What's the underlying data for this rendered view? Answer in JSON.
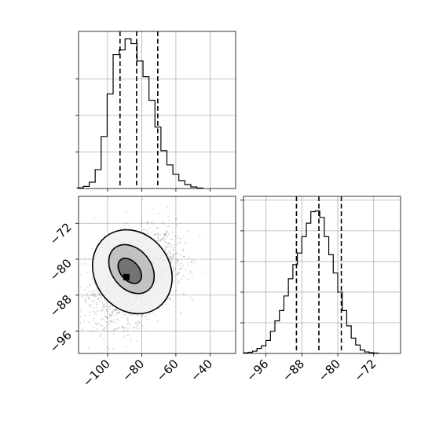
{
  "figure": {
    "panels": [
      "hist-x",
      "scatter-xy",
      "hist-y"
    ]
  },
  "chart_data": [
    {
      "type": "histogram",
      "variable": "x",
      "xlim": [
        -117,
        -25
      ],
      "x_ticks": [
        -100,
        -80,
        -60,
        -40
      ],
      "show_tick_labels": false,
      "grid": true,
      "bins": [
        {
          "x": -116,
          "count": 0.4
        },
        {
          "x": -112.5,
          "count": 1.3
        },
        {
          "x": -109,
          "count": 4.0
        },
        {
          "x": -105.5,
          "count": 12.0
        },
        {
          "x": -102,
          "count": 33.0
        },
        {
          "x": -98.5,
          "count": 60.0
        },
        {
          "x": -95,
          "count": 85.0
        },
        {
          "x": -91.5,
          "count": 88.0
        },
        {
          "x": -88,
          "count": 95.0
        },
        {
          "x": -84.5,
          "count": 92.0
        },
        {
          "x": -81,
          "count": 81.0
        },
        {
          "x": -77.5,
          "count": 71.0
        },
        {
          "x": -74,
          "count": 56.0
        },
        {
          "x": -70.5,
          "count": 39.0
        },
        {
          "x": -67,
          "count": 24.0
        },
        {
          "x": -63.5,
          "count": 15.0
        },
        {
          "x": -60,
          "count": 9.0
        },
        {
          "x": -56.5,
          "count": 5.0
        },
        {
          "x": -53,
          "count": 2.5
        },
        {
          "x": -49.5,
          "count": 1.0
        },
        {
          "x": -46,
          "count": 0.3
        }
      ],
      "bin_width": 3.5,
      "quantiles": [
        -92.7,
        -83.0,
        -70.6
      ]
    },
    {
      "type": "scatter",
      "variables": [
        "x",
        "y"
      ],
      "xlim": [
        -117,
        -25
      ],
      "ylim": [
        -101,
        -66
      ],
      "x_ticks": [
        -100,
        -80,
        -60,
        -40
      ],
      "y_ticks": [
        -72,
        -80,
        -88,
        -96
      ],
      "x_tick_labels": [
        "−100",
        "−80",
        "−60",
        "−40"
      ],
      "y_tick_labels": [
        "−72",
        "−80",
        "−88",
        "−96"
      ],
      "grid": true,
      "mean": [
        -84,
        -84
      ],
      "std": [
        12,
        5
      ],
      "correlation": 0.35,
      "density_levels": [
        "0.39",
        "0.86",
        "1.0"
      ],
      "contours": [
        {
          "cx": -85.5,
          "cy": -82.8,
          "rx": 22,
          "ry": 9.8,
          "angle_deg": -35
        },
        {
          "cx": -86,
          "cy": -82.2,
          "rx": 11.5,
          "ry": 6,
          "angle_deg": -38
        },
        {
          "cx": -87,
          "cy": -82.6,
          "rx": 5.5,
          "ry": 3.2,
          "angle_deg": -40
        }
      ],
      "peak": [
        -89,
        -84
      ]
    },
    {
      "type": "histogram",
      "variable": "y",
      "xlim": [
        -101,
        -66
      ],
      "x_ticks": [
        -96,
        -88,
        -80,
        -72
      ],
      "x_tick_labels": [
        "−96",
        "−88",
        "−80",
        "−72"
      ],
      "y_ticks": [
        80,
        160,
        240,
        320,
        400
      ],
      "show_y_tick_labels": false,
      "grid": true,
      "bins": [
        {
          "x": -100.5,
          "count": 1.5
        },
        {
          "x": -99.5,
          "count": 3.0
        },
        {
          "x": -98.5,
          "count": 6.0
        },
        {
          "x": -97.5,
          "count": 13.0
        },
        {
          "x": -96.5,
          "count": 20.0
        },
        {
          "x": -95.5,
          "count": 34.0
        },
        {
          "x": -94.5,
          "count": 58.0
        },
        {
          "x": -93.5,
          "count": 85.0
        },
        {
          "x": -92.5,
          "count": 112.0
        },
        {
          "x": -91.5,
          "count": 150.0
        },
        {
          "x": -90.5,
          "count": 195.0
        },
        {
          "x": -89.5,
          "count": 232.0
        },
        {
          "x": -88.5,
          "count": 262.0
        },
        {
          "x": -87.5,
          "count": 305.0
        },
        {
          "x": -86.5,
          "count": 340.0
        },
        {
          "x": -85.5,
          "count": 370.0
        },
        {
          "x": -84.5,
          "count": 372.0
        },
        {
          "x": -83.5,
          "count": 355.0
        },
        {
          "x": -82.5,
          "count": 305.0
        },
        {
          "x": -81.5,
          "count": 258.0
        },
        {
          "x": -80.5,
          "count": 210.0
        },
        {
          "x": -79.5,
          "count": 160.0
        },
        {
          "x": -78.5,
          "count": 112.0
        },
        {
          "x": -77.5,
          "count": 72.0
        },
        {
          "x": -76.5,
          "count": 40.0
        },
        {
          "x": -75.5,
          "count": 22.0
        },
        {
          "x": -74.5,
          "count": 9.0
        },
        {
          "x": -73.5,
          "count": 4.0
        },
        {
          "x": -72.5,
          "count": 2.0
        },
        {
          "x": -71.5,
          "count": 1.0
        }
      ],
      "bin_width": 1.0,
      "ylim": [
        0,
        410
      ],
      "quantiles": [
        -89.2,
        -84.2,
        -79.2
      ]
    }
  ]
}
